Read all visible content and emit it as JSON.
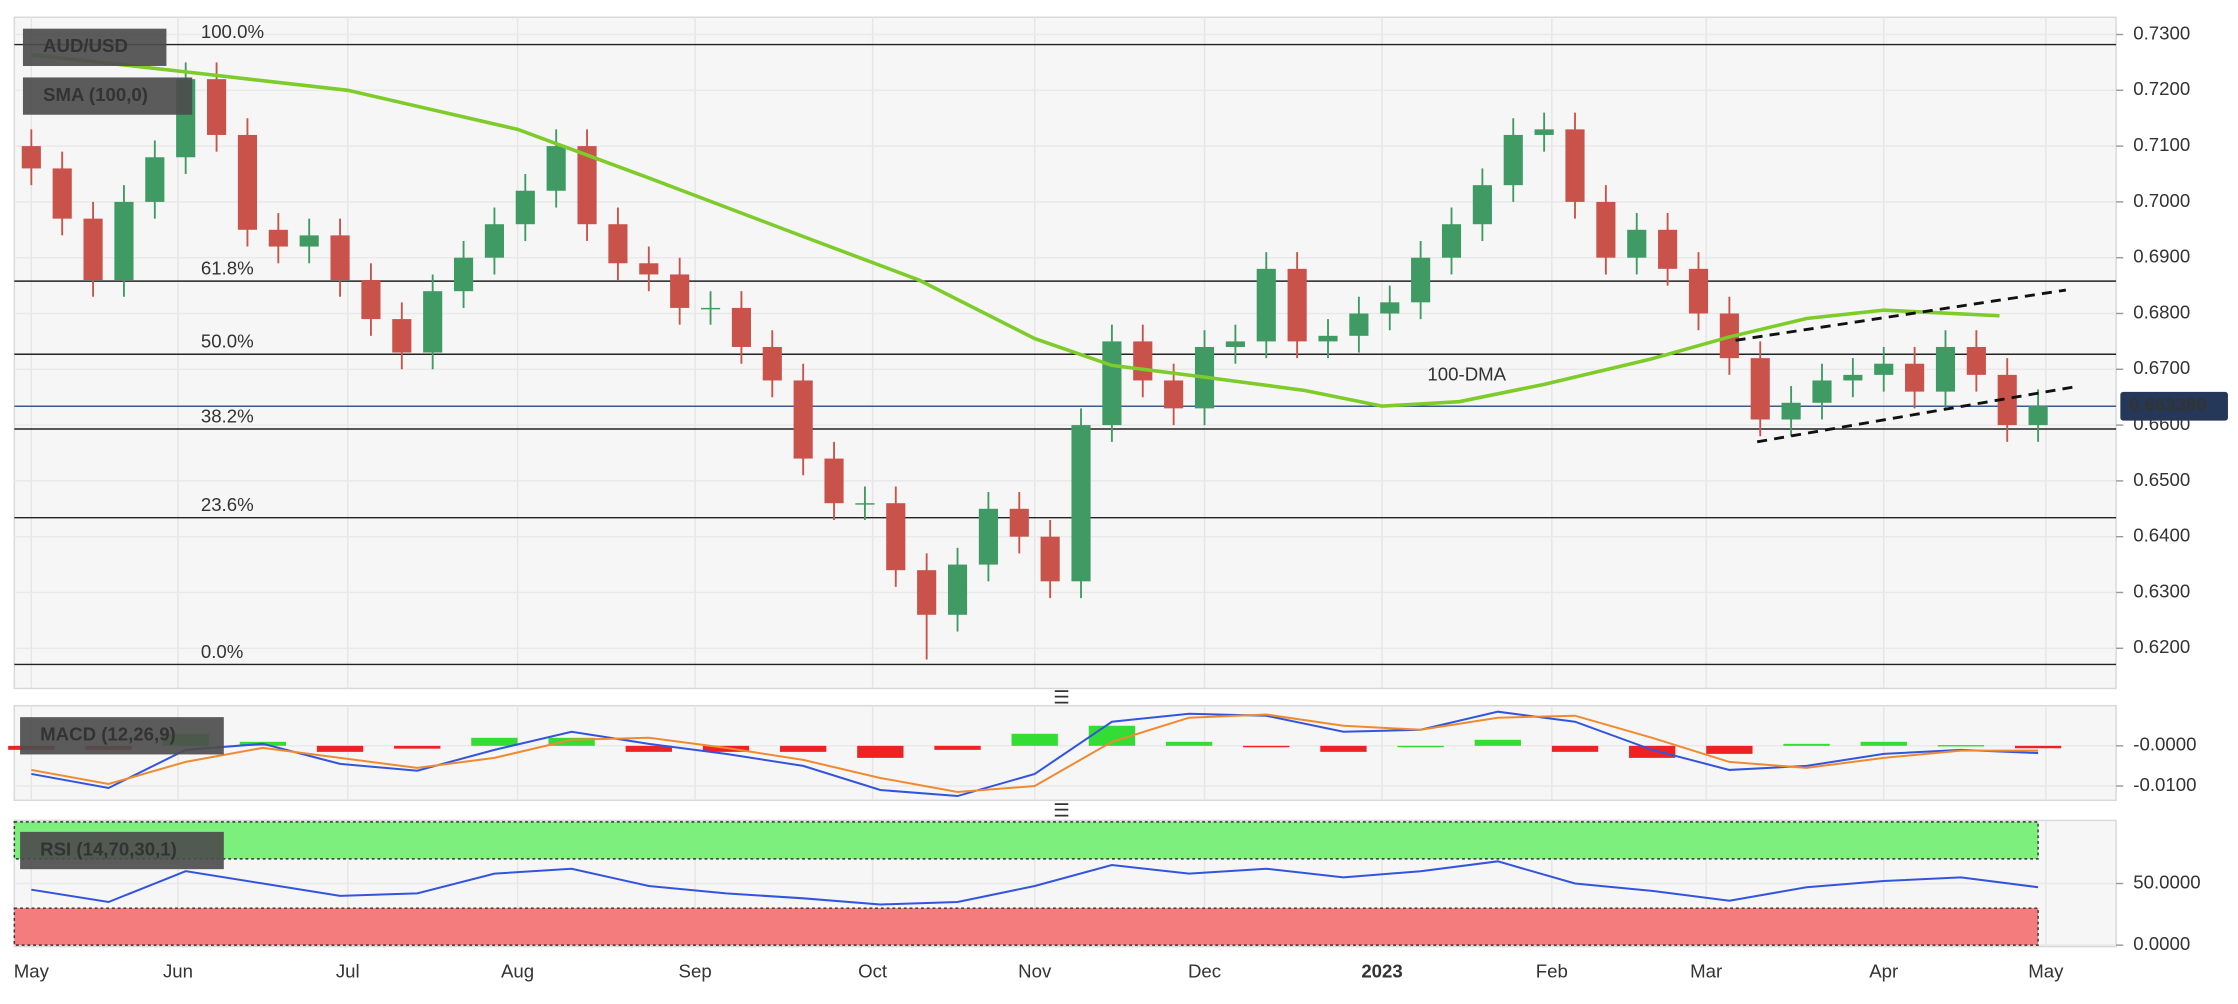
{
  "chart_data": [
    {
      "type": "candlestick",
      "title": "AUD/USD",
      "x": [
        0,
        4,
        8,
        12,
        16,
        20,
        24,
        28,
        32,
        36,
        40,
        44,
        48,
        52,
        56,
        60,
        64,
        68,
        72,
        76,
        80,
        84,
        88,
        92,
        96,
        100,
        104,
        108,
        112,
        116,
        120,
        124,
        128,
        132,
        136,
        140,
        144,
        148,
        152,
        156,
        160,
        164,
        168,
        172,
        176,
        180,
        184,
        188,
        192,
        196,
        200,
        204,
        208,
        212,
        216,
        220,
        224,
        228,
        232,
        236,
        240,
        244,
        248,
        252,
        256,
        260
      ],
      "open": [
        0.71,
        0.706,
        0.697,
        0.686,
        0.7,
        0.708,
        0.722,
        0.712,
        0.695,
        0.692,
        0.694,
        0.686,
        0.679,
        0.673,
        0.684,
        0.69,
        0.696,
        0.702,
        0.71,
        0.696,
        0.689,
        0.687,
        0.681,
        0.681,
        0.674,
        0.668,
        0.654,
        0.646,
        0.646,
        0.634,
        0.626,
        0.635,
        0.645,
        0.64,
        0.632,
        0.66,
        0.675,
        0.668,
        0.663,
        0.674,
        0.675,
        0.688,
        0.675,
        0.676,
        0.68,
        0.682,
        0.69,
        0.696,
        0.703,
        0.712,
        0.713,
        0.7,
        0.69,
        0.695,
        0.688,
        0.68,
        0.672,
        0.661,
        0.664,
        0.668,
        0.669,
        0.671,
        0.666,
        0.674,
        0.669,
        0.66
      ],
      "high": [
        0.713,
        0.709,
        0.7,
        0.703,
        0.711,
        0.725,
        0.725,
        0.715,
        0.698,
        0.697,
        0.697,
        0.689,
        0.682,
        0.687,
        0.693,
        0.699,
        0.705,
        0.713,
        0.713,
        0.699,
        0.692,
        0.69,
        0.684,
        0.684,
        0.677,
        0.671,
        0.657,
        0.649,
        0.649,
        0.637,
        0.638,
        0.648,
        0.648,
        0.643,
        0.663,
        0.678,
        0.678,
        0.671,
        0.677,
        0.678,
        0.691,
        0.691,
        0.679,
        0.683,
        0.685,
        0.693,
        0.699,
        0.706,
        0.715,
        0.716,
        0.716,
        0.703,
        0.698,
        0.698,
        0.691,
        0.683,
        0.675,
        0.667,
        0.671,
        0.672,
        0.674,
        0.674,
        0.677,
        0.677,
        0.672,
        0.6664
      ],
      "low": [
        0.703,
        0.694,
        0.683,
        0.683,
        0.697,
        0.705,
        0.709,
        0.692,
        0.689,
        0.689,
        0.683,
        0.676,
        0.67,
        0.67,
        0.681,
        0.687,
        0.693,
        0.699,
        0.693,
        0.686,
        0.684,
        0.678,
        0.678,
        0.671,
        0.665,
        0.651,
        0.643,
        0.643,
        0.631,
        0.618,
        0.623,
        0.632,
        0.637,
        0.629,
        0.629,
        0.657,
        0.665,
        0.66,
        0.66,
        0.671,
        0.672,
        0.672,
        0.672,
        0.673,
        0.677,
        0.679,
        0.687,
        0.693,
        0.7,
        0.709,
        0.697,
        0.687,
        0.687,
        0.685,
        0.677,
        0.669,
        0.658,
        0.658,
        0.661,
        0.665,
        0.666,
        0.663,
        0.663,
        0.666,
        0.657,
        0.657
      ],
      "close": [
        0.706,
        0.697,
        0.686,
        0.7,
        0.708,
        0.722,
        0.712,
        0.695,
        0.692,
        0.694,
        0.686,
        0.679,
        0.673,
        0.684,
        0.69,
        0.696,
        0.702,
        0.71,
        0.696,
        0.689,
        0.687,
        0.681,
        0.681,
        0.674,
        0.668,
        0.654,
        0.646,
        0.646,
        0.634,
        0.626,
        0.635,
        0.645,
        0.64,
        0.632,
        0.66,
        0.675,
        0.668,
        0.663,
        0.674,
        0.675,
        0.688,
        0.675,
        0.676,
        0.68,
        0.682,
        0.69,
        0.696,
        0.703,
        0.712,
        0.713,
        0.7,
        0.69,
        0.695,
        0.688,
        0.68,
        0.672,
        0.661,
        0.664,
        0.668,
        0.669,
        0.671,
        0.666,
        0.674,
        0.669,
        0.66,
        0.6634
      ],
      "up_color": "#3f9b63",
      "down_color": "#c9534b",
      "xlim": [
        -2.2,
        270.1
      ],
      "ylim": [
        0.6128,
        0.7331
      ],
      "xticks": [
        {
          "value": 0,
          "label": "May"
        },
        {
          "value": 19,
          "label": "Jun"
        },
        {
          "value": 41,
          "label": "Jul"
        },
        {
          "value": 63,
          "label": "Aug"
        },
        {
          "value": 86,
          "label": "Sep"
        },
        {
          "value": 109,
          "label": "Oct"
        },
        {
          "value": 130,
          "label": "Nov"
        },
        {
          "value": 152,
          "label": "Dec"
        },
        {
          "value": 175,
          "label": "2023"
        },
        {
          "value": 197,
          "label": "Feb"
        },
        {
          "value": 217,
          "label": "Mar"
        },
        {
          "value": 240,
          "label": "Apr"
        },
        {
          "value": 261,
          "label": "May"
        }
      ],
      "yticks": [
        {
          "value": 0.62,
          "label": "0.6200"
        },
        {
          "value": 0.63,
          "label": "0.6300"
        },
        {
          "value": 0.64,
          "label": "0.6400"
        },
        {
          "value": 0.65,
          "label": "0.6500"
        },
        {
          "value": 0.66,
          "label": "0.6600"
        },
        {
          "value": 0.67,
          "label": "0.6700"
        },
        {
          "value": 0.68,
          "label": "0.6800"
        },
        {
          "value": 0.69,
          "label": "0.6900"
        },
        {
          "value": 0.7,
          "label": "0.7000"
        },
        {
          "value": 0.71,
          "label": "0.7100"
        },
        {
          "value": 0.72,
          "label": "0.7200"
        },
        {
          "value": 0.73,
          "label": "0.7300"
        }
      ],
      "sma": {
        "name": "SMA (100,0)",
        "annotation": "100-DMA",
        "color": "#7dcc2a",
        "x": [
          0,
          20,
          41,
          63,
          80,
          100,
          115,
          130,
          140,
          152,
          165,
          175,
          185,
          196,
          210,
          220,
          230,
          240,
          255
        ],
        "values": [
          0.7264,
          0.7233,
          0.72,
          0.713,
          0.7043,
          0.6938,
          0.686,
          0.6755,
          0.6707,
          0.6686,
          0.6662,
          0.6634,
          0.6642,
          0.6673,
          0.6719,
          0.6758,
          0.6791,
          0.6806,
          0.6796
        ]
      },
      "fib_levels": [
        {
          "label": "100.0%",
          "value": 0.7282
        },
        {
          "label": "61.8%",
          "value": 0.6858
        },
        {
          "label": "50.0%",
          "value": 0.6727
        },
        {
          "label": "38.2%",
          "value": 0.6593
        },
        {
          "label": "23.6%",
          "value": 0.6434
        },
        {
          "label": "0.0%",
          "value": 0.6171
        }
      ],
      "last_price": {
        "value": 0.66338,
        "label": "0.663380"
      },
      "trendlines": [
        {
          "x": [
            220.8,
            263.6
          ],
          "y": [
            0.6752,
            0.6842
          ]
        },
        {
          "x": [
            223.6,
            264.5
          ],
          "y": [
            0.657,
            0.6668
          ]
        }
      ]
    },
    {
      "type": "line",
      "title": "MACD (12,26,9)",
      "xlim": [
        -2.2,
        270.1
      ],
      "ylim": [
        -0.01357,
        0.01
      ],
      "yticks": [
        {
          "value": 0,
          "label": "-0.0000"
        },
        {
          "value": -0.01,
          "label": "-0.0100"
        }
      ],
      "x": [
        0,
        10,
        20,
        30,
        40,
        50,
        60,
        70,
        80,
        90,
        100,
        110,
        120,
        130,
        140,
        150,
        160,
        170,
        180,
        190,
        200,
        210,
        220,
        230,
        240,
        250,
        260
      ],
      "series": [
        {
          "type": "bar",
          "up_color": "#33dd33",
          "down_color": "#ee2222",
          "values": [
            -0.001,
            -0.001,
            0.003,
            0.001,
            -0.0015,
            -0.0007,
            0.002,
            0.002,
            -0.0015,
            -0.0015,
            -0.0015,
            -0.003,
            -0.001,
            0.003,
            0.005,
            0.001,
            -0.0003,
            -0.0015,
            0.0,
            0.0015,
            -0.0015,
            -0.003,
            -0.002,
            0.0005,
            0.001,
            0.0002,
            -0.0006
          ]
        },
        {
          "type": "line",
          "color": "#3355dd",
          "values": [
            -0.007,
            -0.0105,
            -0.001,
            0.0005,
            -0.0045,
            -0.0062,
            -0.001,
            0.0035,
            0.0005,
            -0.002,
            -0.005,
            -0.011,
            -0.0125,
            -0.007,
            0.006,
            0.008,
            0.0075,
            0.0035,
            0.004,
            0.0085,
            0.006,
            -0.001,
            -0.006,
            -0.005,
            -0.002,
            -0.001,
            -0.0018
          ]
        },
        {
          "type": "line",
          "color": "#f08a30",
          "values": [
            -0.006,
            -0.0095,
            -0.004,
            -0.0005,
            -0.003,
            -0.0055,
            -0.003,
            0.0015,
            0.002,
            -0.0005,
            -0.0035,
            -0.008,
            -0.0115,
            -0.01,
            0.001,
            0.007,
            0.0078,
            0.005,
            0.004,
            0.007,
            0.0075,
            0.002,
            -0.004,
            -0.0055,
            -0.003,
            -0.0012,
            -0.0012
          ]
        }
      ]
    },
    {
      "type": "line",
      "title": "RSI (14,70,30,1)",
      "xlim": [
        -2.2,
        270.1
      ],
      "ylim": [
        -1.2,
        101.2
      ],
      "yticks": [
        {
          "value": 0,
          "label": "0.0000"
        },
        {
          "value": 50,
          "label": "50.0000"
        }
      ],
      "zones": [
        {
          "from": 70,
          "to": 100,
          "color": "#7def7d"
        },
        {
          "from": 0,
          "to": 30,
          "color": "#f57c7c"
        }
      ],
      "x": [
        0,
        10,
        20,
        30,
        40,
        50,
        60,
        70,
        80,
        90,
        100,
        110,
        120,
        130,
        140,
        150,
        160,
        170,
        180,
        190,
        200,
        210,
        220,
        230,
        240,
        250,
        260
      ],
      "series": [
        {
          "type": "line",
          "color": "#3355dd",
          "values": [
            45,
            35,
            60,
            50,
            40,
            42,
            58,
            62,
            48,
            42,
            38,
            33,
            35,
            48,
            65,
            58,
            62,
            55,
            60,
            68,
            50,
            44,
            36,
            47,
            52,
            55,
            47
          ]
        }
      ]
    }
  ]
}
